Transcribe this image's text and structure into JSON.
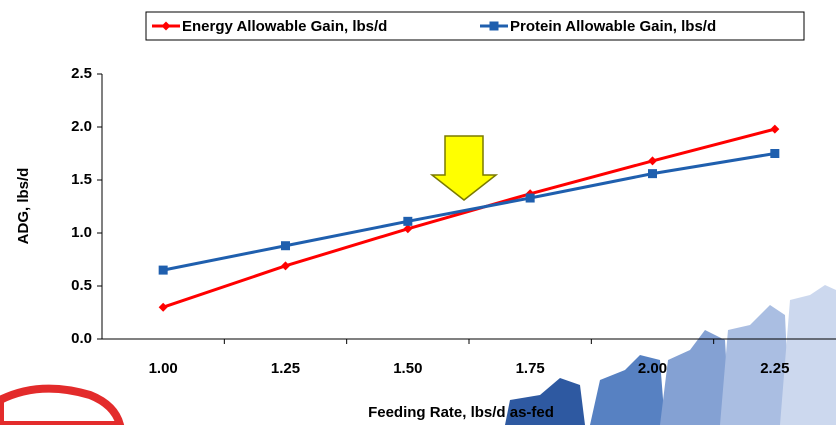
{
  "chart_data": {
    "type": "line",
    "x_label": "Feeding Rate, lbs/d as-fed",
    "y_label": "ADG, lbs/d",
    "categories": [
      "1.00",
      "1.25",
      "1.50",
      "1.75",
      "2.00",
      "2.25"
    ],
    "series": [
      {
        "name": "Energy Allowable Gain, lbs/d",
        "color": "#ff0000",
        "marker": "diamond",
        "values": [
          0.3,
          0.69,
          1.04,
          1.37,
          1.68,
          1.98
        ]
      },
      {
        "name": "Protein Allowable Gain, lbs/d",
        "color": "#1f5fae",
        "marker": "square",
        "values": [
          0.65,
          0.88,
          1.11,
          1.33,
          1.56,
          1.75
        ]
      }
    ],
    "ylim": [
      0,
      2.5
    ],
    "yticks": [
      {
        "value": 0,
        "label": "0.0"
      },
      {
        "value": 0.5,
        "label": "0.5"
      },
      {
        "value": 1,
        "label": "1.0"
      },
      {
        "value": 1.5,
        "label": "1.5"
      },
      {
        "value": 2,
        "label": "2.0"
      },
      {
        "value": 2.5,
        "label": "2.5"
      }
    ],
    "legend": "top"
  }
}
